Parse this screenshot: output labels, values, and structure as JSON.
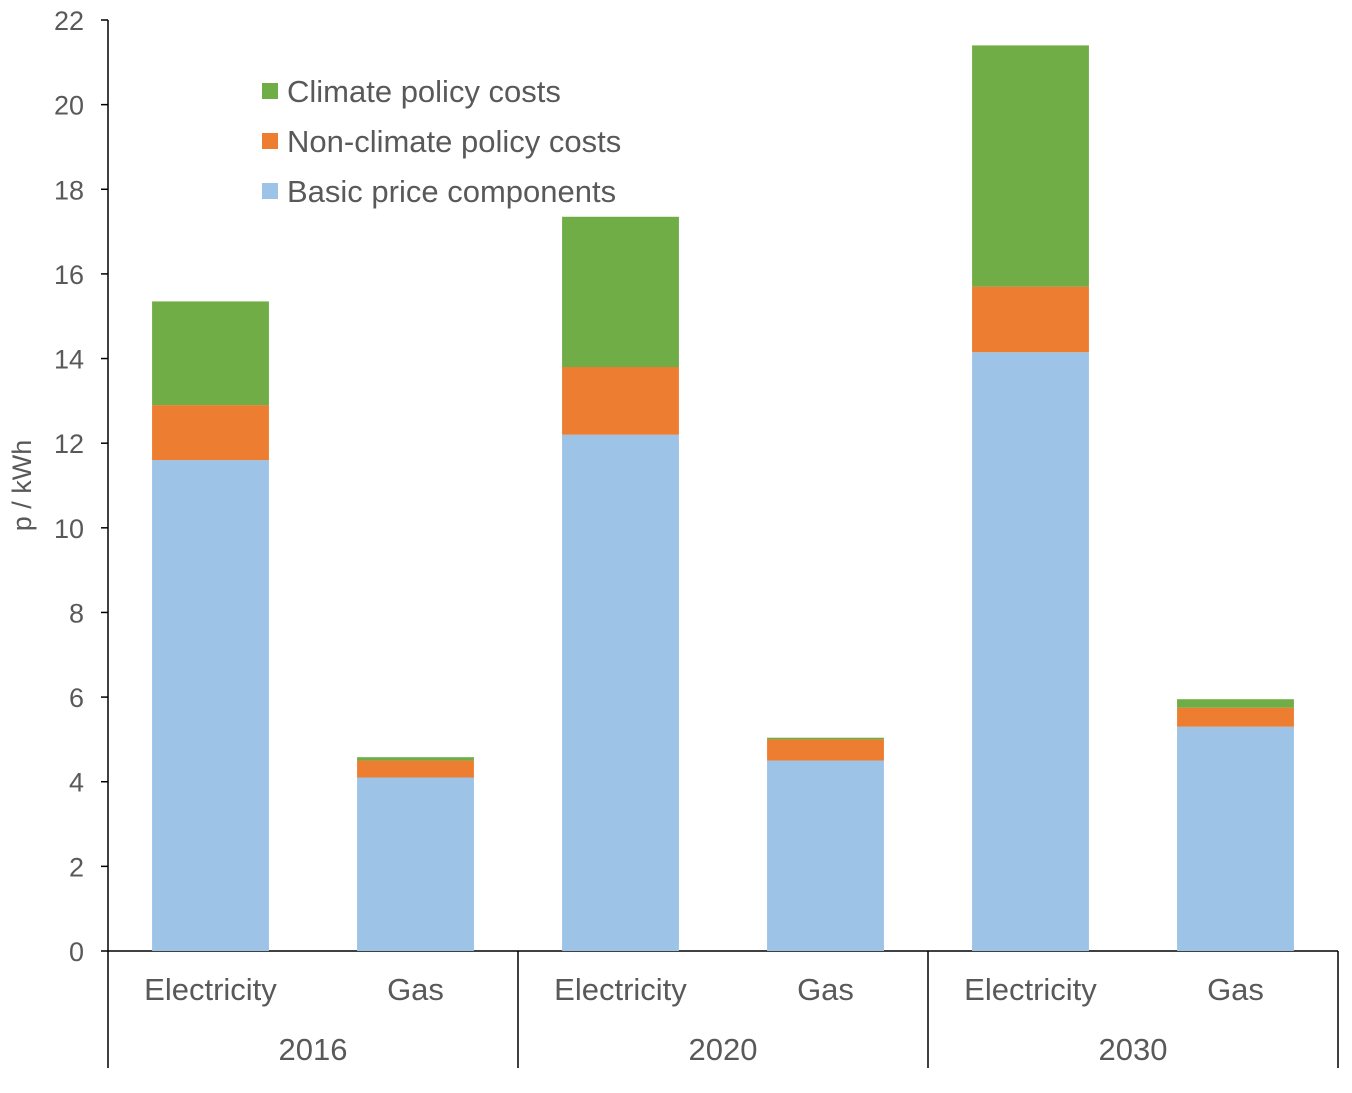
{
  "chart_data": {
    "type": "bar",
    "stacked": true,
    "title": "",
    "xlabel": "",
    "ylabel": "p / kWh",
    "ylim": [
      0,
      22
    ],
    "yticks": [
      0,
      2,
      4,
      6,
      8,
      10,
      12,
      14,
      16,
      18,
      20,
      22
    ],
    "grid": false,
    "legend_position": "top-left",
    "groups": [
      "2016",
      "2020",
      "2030"
    ],
    "categories": [
      "Electricity",
      "Gas",
      "Electricity",
      "Gas",
      "Electricity",
      "Gas"
    ],
    "series": [
      {
        "name": "Basic price components",
        "color": "#9DC3E6",
        "values": [
          11.6,
          4.1,
          12.2,
          4.5,
          14.15,
          5.3
        ]
      },
      {
        "name": "Non-climate policy costs",
        "color": "#ED7D31",
        "values": [
          1.3,
          0.4,
          1.6,
          0.5,
          1.55,
          0.45
        ]
      },
      {
        "name": "Climate policy costs",
        "color": "#70AD47",
        "values": [
          2.45,
          0.08,
          3.55,
          0.04,
          5.7,
          0.2
        ]
      }
    ]
  }
}
